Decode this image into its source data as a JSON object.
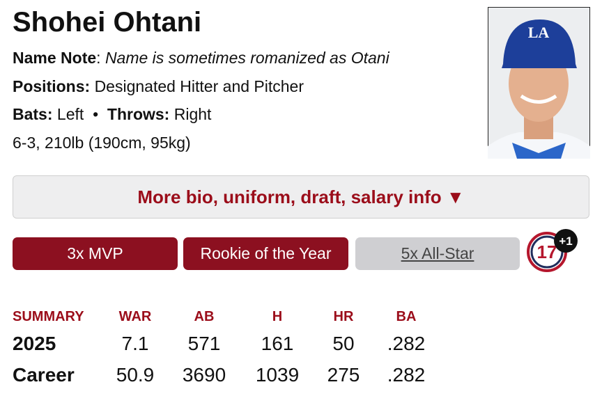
{
  "player": {
    "name": "Shohei Ohtani",
    "name_note": {
      "label": "Name Note",
      "separator": ":",
      "text": "Name is sometimes romanized as Otani"
    },
    "positions": {
      "label": "Positions:",
      "text": "Designated Hitter and Pitcher"
    },
    "bats": {
      "label": "Bats:",
      "text": "Left"
    },
    "bullet": "•",
    "throws": {
      "label": "Throws:",
      "text": "Right"
    },
    "physical": "6-3, 210lb (190cm, 95kg)"
  },
  "more_button": "More bio, uniform, draft, salary info ▼",
  "awards": [
    "3x MVP",
    "Rookie of the Year",
    "5x All-Star"
  ],
  "number_badge": {
    "number": "17",
    "extra": "+1"
  },
  "table": {
    "headers": [
      "SUMMARY",
      "WAR",
      "AB",
      "H",
      "HR",
      "BA"
    ],
    "rows": [
      [
        "2025",
        "7.1",
        "571",
        "161",
        "50",
        ".282"
      ],
      [
        "Career",
        "50.9",
        "3690",
        "1039",
        "275",
        ".282"
      ]
    ]
  }
}
